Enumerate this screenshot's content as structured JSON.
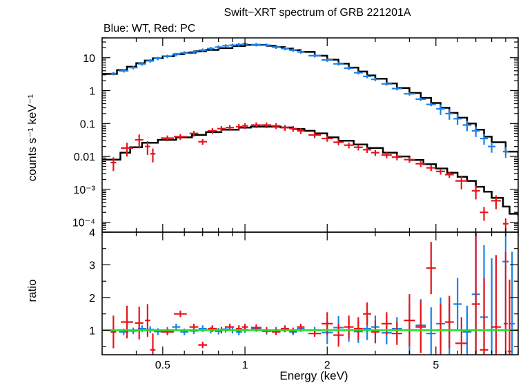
{
  "chart_data": {
    "type": "scatter",
    "title": "Swift−XRT spectrum of GRB 221201A",
    "subtitle": "Blue: WT, Red: PC",
    "xlabel": "Energy (keV)",
    "x_scale": "log",
    "xlim": [
      0.3,
      10
    ],
    "x_ticks": [
      {
        "value": 0.5,
        "label": "0.5"
      },
      {
        "value": 1,
        "label": "1"
      },
      {
        "value": 2,
        "label": "2"
      },
      {
        "value": 5,
        "label": "5"
      }
    ],
    "colors": {
      "wt": "#1a82e8",
      "pc": "#e8141b",
      "model": "#000000",
      "ratio_line": "#22dd22"
    },
    "top_panel": {
      "ylabel": "counts s⁻¹ keV⁻¹",
      "y_scale": "log",
      "ylim": [
        5e-05,
        40
      ],
      "y_ticks": [
        {
          "value": 10,
          "label": "10"
        },
        {
          "value": 1,
          "label": "1"
        },
        {
          "value": 0.1,
          "label": "0.1"
        },
        {
          "value": 0.01,
          "label": "0.01"
        },
        {
          "value": 0.001,
          "label": "10⁻³"
        },
        {
          "value": 0.0001,
          "label": "10⁻⁴"
        }
      ],
      "series": [
        {
          "name": "WT",
          "points": [
            [
              0.33,
              3.3
            ],
            [
              0.36,
              4.0
            ],
            [
              0.39,
              5.0
            ],
            [
              0.42,
              6.5
            ],
            [
              0.45,
              8.0
            ],
            [
              0.48,
              9.5
            ],
            [
              0.52,
              11
            ],
            [
              0.56,
              12.5
            ],
            [
              0.6,
              14
            ],
            [
              0.65,
              15
            ],
            [
              0.7,
              17
            ],
            [
              0.75,
              19
            ],
            [
              0.8,
              21
            ],
            [
              0.85,
              23
            ],
            [
              0.9,
              24
            ],
            [
              0.95,
              25
            ],
            [
              1.0,
              26
            ],
            [
              1.1,
              25
            ],
            [
              1.2,
              24
            ],
            [
              1.3,
              21
            ],
            [
              1.4,
              19
            ],
            [
              1.5,
              17
            ],
            [
              1.6,
              15
            ],
            [
              1.8,
              11.5
            ],
            [
              2.0,
              8.5
            ],
            [
              2.2,
              6.5
            ],
            [
              2.4,
              4.8
            ],
            [
              2.6,
              3.5
            ],
            [
              2.8,
              2.7
            ],
            [
              3.0,
              2.2
            ],
            [
              3.3,
              1.6
            ],
            [
              3.6,
              1.15
            ],
            [
              4.0,
              0.8
            ],
            [
              4.4,
              0.55
            ],
            [
              4.8,
              0.38
            ],
            [
              5.2,
              0.28
            ],
            [
              5.6,
              0.2
            ],
            [
              6.0,
              0.14
            ],
            [
              6.5,
              0.09
            ],
            [
              7.0,
              0.06
            ],
            [
              7.5,
              0.035
            ],
            [
              8.0,
              0.02
            ],
            [
              9.0,
              0.014
            ]
          ]
        },
        {
          "name": "PC",
          "points": [
            [
              0.33,
              0.0065
            ],
            [
              0.37,
              0.018
            ],
            [
              0.41,
              0.032
            ],
            [
              0.44,
              0.02
            ],
            [
              0.46,
              0.012
            ],
            [
              0.52,
              0.036
            ],
            [
              0.58,
              0.04
            ],
            [
              0.65,
              0.05
            ],
            [
              0.7,
              0.028
            ],
            [
              0.76,
              0.06
            ],
            [
              0.82,
              0.07
            ],
            [
              0.88,
              0.075
            ],
            [
              0.95,
              0.08
            ],
            [
              1.0,
              0.085
            ],
            [
              1.1,
              0.09
            ],
            [
              1.2,
              0.09
            ],
            [
              1.3,
              0.085
            ],
            [
              1.4,
              0.075
            ],
            [
              1.5,
              0.07
            ],
            [
              1.6,
              0.06
            ],
            [
              1.8,
              0.045
            ],
            [
              2.0,
              0.035
            ],
            [
              2.2,
              0.027
            ],
            [
              2.4,
              0.022
            ],
            [
              2.6,
              0.019
            ],
            [
              2.8,
              0.016
            ],
            [
              3.0,
              0.013
            ],
            [
              3.3,
              0.011
            ],
            [
              3.6,
              0.0095
            ],
            [
              4.0,
              0.008
            ],
            [
              4.4,
              0.006
            ],
            [
              4.8,
              0.0045
            ],
            [
              5.2,
              0.0035
            ],
            [
              5.6,
              0.0028
            ],
            [
              6.2,
              0.0018
            ],
            [
              7.0,
              0.0009
            ],
            [
              7.5,
              0.0002
            ],
            [
              8.3,
              0.00045
            ],
            [
              9.0,
              9e-05
            ]
          ]
        }
      ],
      "models": [
        {
          "name": "WT model",
          "steps": [
            [
              0.3,
              3.2
            ],
            [
              0.34,
              4.2
            ],
            [
              0.37,
              5.3
            ],
            [
              0.4,
              6.8
            ],
            [
              0.43,
              8.2
            ],
            [
              0.46,
              9.6
            ],
            [
              0.5,
              11
            ],
            [
              0.55,
              12.7
            ],
            [
              0.6,
              14.2
            ],
            [
              0.66,
              15.6
            ],
            [
              0.72,
              17.2
            ],
            [
              0.8,
              19.5
            ],
            [
              0.9,
              22.5
            ],
            [
              1.0,
              24.5
            ],
            [
              1.1,
              24.5
            ],
            [
              1.2,
              23
            ],
            [
              1.3,
              21
            ],
            [
              1.4,
              19
            ],
            [
              1.5,
              17
            ],
            [
              1.6,
              15
            ],
            [
              1.8,
              11.5
            ],
            [
              2.0,
              8.7
            ],
            [
              2.2,
              6.6
            ],
            [
              2.4,
              5.0
            ],
            [
              2.6,
              3.8
            ],
            [
              2.8,
              2.9
            ],
            [
              3.0,
              2.3
            ],
            [
              3.3,
              1.65
            ],
            [
              3.6,
              1.2
            ],
            [
              4.0,
              0.85
            ],
            [
              4.4,
              0.6
            ],
            [
              4.8,
              0.42
            ],
            [
              5.2,
              0.3
            ],
            [
              5.6,
              0.21
            ],
            [
              6.0,
              0.15
            ],
            [
              6.5,
              0.1
            ],
            [
              7.0,
              0.065
            ],
            [
              7.5,
              0.04
            ],
            [
              8.0,
              0.027
            ],
            [
              9.0,
              0.014
            ],
            [
              10,
              0.01
            ]
          ]
        },
        {
          "name": "PC model",
          "steps": [
            [
              0.3,
              0.008
            ],
            [
              0.35,
              0.013
            ],
            [
              0.38,
              0.019
            ],
            [
              0.42,
              0.026
            ],
            [
              0.48,
              0.032
            ],
            [
              0.56,
              0.038
            ],
            [
              0.64,
              0.045
            ],
            [
              0.72,
              0.055
            ],
            [
              0.82,
              0.065
            ],
            [
              0.95,
              0.075
            ],
            [
              1.05,
              0.08
            ],
            [
              1.2,
              0.08
            ],
            [
              1.35,
              0.076
            ],
            [
              1.5,
              0.068
            ],
            [
              1.65,
              0.06
            ],
            [
              1.8,
              0.05
            ],
            [
              2.0,
              0.038
            ],
            [
              2.2,
              0.03
            ],
            [
              2.5,
              0.023
            ],
            [
              2.8,
              0.018
            ],
            [
              3.2,
              0.013
            ],
            [
              3.6,
              0.01
            ],
            [
              4.0,
              0.0078
            ],
            [
              4.5,
              0.0058
            ],
            [
              5.0,
              0.0043
            ],
            [
              5.5,
              0.0032
            ],
            [
              6.0,
              0.0024
            ],
            [
              6.5,
              0.0018
            ],
            [
              7.0,
              0.0012
            ],
            [
              7.5,
              0.00085
            ],
            [
              8.0,
              0.00055
            ],
            [
              8.8,
              0.0003
            ],
            [
              9.3,
              0.00018
            ],
            [
              10,
              0.00015
            ]
          ]
        }
      ]
    },
    "bottom_panel": {
      "ylabel": "ratio",
      "y_scale": "linear",
      "ylim": [
        0.25,
        4
      ],
      "y_ticks": [
        {
          "value": 1,
          "label": "1"
        },
        {
          "value": 2,
          "label": "2"
        },
        {
          "value": 3,
          "label": "3"
        },
        {
          "value": 4,
          "label": "4"
        }
      ],
      "reference_value": 1,
      "series": [
        {
          "name": "WT",
          "points": [
            [
              0.33,
              1.0
            ],
            [
              0.36,
              0.95
            ],
            [
              0.39,
              0.98
            ],
            [
              0.42,
              1.05
            ],
            [
              0.45,
              1.02
            ],
            [
              0.48,
              0.96
            ],
            [
              0.52,
              1.0
            ],
            [
              0.56,
              1.1
            ],
            [
              0.6,
              0.95
            ],
            [
              0.65,
              0.98
            ],
            [
              0.7,
              1.05
            ],
            [
              0.75,
              1.0
            ],
            [
              0.8,
              0.97
            ],
            [
              0.85,
              1.03
            ],
            [
              0.9,
              1.0
            ],
            [
              0.95,
              0.95
            ],
            [
              1.0,
              1.02
            ],
            [
              1.1,
              1.05
            ],
            [
              1.2,
              0.97
            ],
            [
              1.3,
              1.0
            ],
            [
              1.4,
              1.04
            ],
            [
              1.5,
              0.95
            ],
            [
              1.6,
              1.05
            ],
            [
              1.8,
              1.0
            ],
            [
              2.0,
              0.93
            ],
            [
              2.2,
              1.08
            ],
            [
              2.4,
              1.0
            ],
            [
              2.6,
              0.96
            ],
            [
              2.8,
              1.05
            ],
            [
              3.0,
              1.1
            ],
            [
              3.3,
              0.92
            ],
            [
              3.6,
              1.05
            ],
            [
              4.0,
              1.0
            ],
            [
              4.4,
              1.15
            ],
            [
              4.8,
              0.9
            ],
            [
              5.2,
              1.2
            ],
            [
              5.6,
              1.0
            ],
            [
              6.0,
              1.8
            ],
            [
              6.5,
              0.95
            ],
            [
              7.0,
              2.1
            ],
            [
              7.5,
              1.4
            ],
            [
              8.0,
              1.0
            ],
            [
              9.0,
              3.1
            ],
            [
              9.5,
              1.2
            ]
          ]
        },
        {
          "name": "PC",
          "points": [
            [
              0.33,
              0.95
            ],
            [
              0.37,
              1.25
            ],
            [
              0.41,
              1.22
            ],
            [
              0.44,
              1.3
            ],
            [
              0.46,
              0.4
            ],
            [
              0.52,
              0.95
            ],
            [
              0.58,
              1.5
            ],
            [
              0.65,
              1.1
            ],
            [
              0.7,
              0.55
            ],
            [
              0.76,
              1.05
            ],
            [
              0.82,
              1.0
            ],
            [
              0.88,
              1.1
            ],
            [
              0.95,
              1.05
            ],
            [
              1.0,
              1.1
            ],
            [
              1.1,
              1.08
            ],
            [
              1.2,
              1.0
            ],
            [
              1.3,
              0.95
            ],
            [
              1.4,
              1.05
            ],
            [
              1.5,
              0.98
            ],
            [
              1.6,
              1.1
            ],
            [
              1.8,
              0.9
            ],
            [
              2.0,
              1.2
            ],
            [
              2.2,
              0.85
            ],
            [
              2.4,
              1.1
            ],
            [
              2.6,
              1.05
            ],
            [
              2.8,
              1.5
            ],
            [
              3.0,
              0.95
            ],
            [
              3.3,
              1.2
            ],
            [
              3.6,
              0.9
            ],
            [
              4.0,
              1.3
            ],
            [
              4.4,
              1.1
            ],
            [
              4.8,
              2.9
            ],
            [
              5.2,
              1.0
            ],
            [
              5.6,
              1.25
            ],
            [
              6.2,
              0.6
            ],
            [
              7.0,
              1.8
            ],
            [
              7.5,
              0.4
            ],
            [
              8.3,
              1.1
            ],
            [
              9.0,
              1.2
            ],
            [
              9.3,
              0.35
            ]
          ]
        }
      ]
    }
  }
}
